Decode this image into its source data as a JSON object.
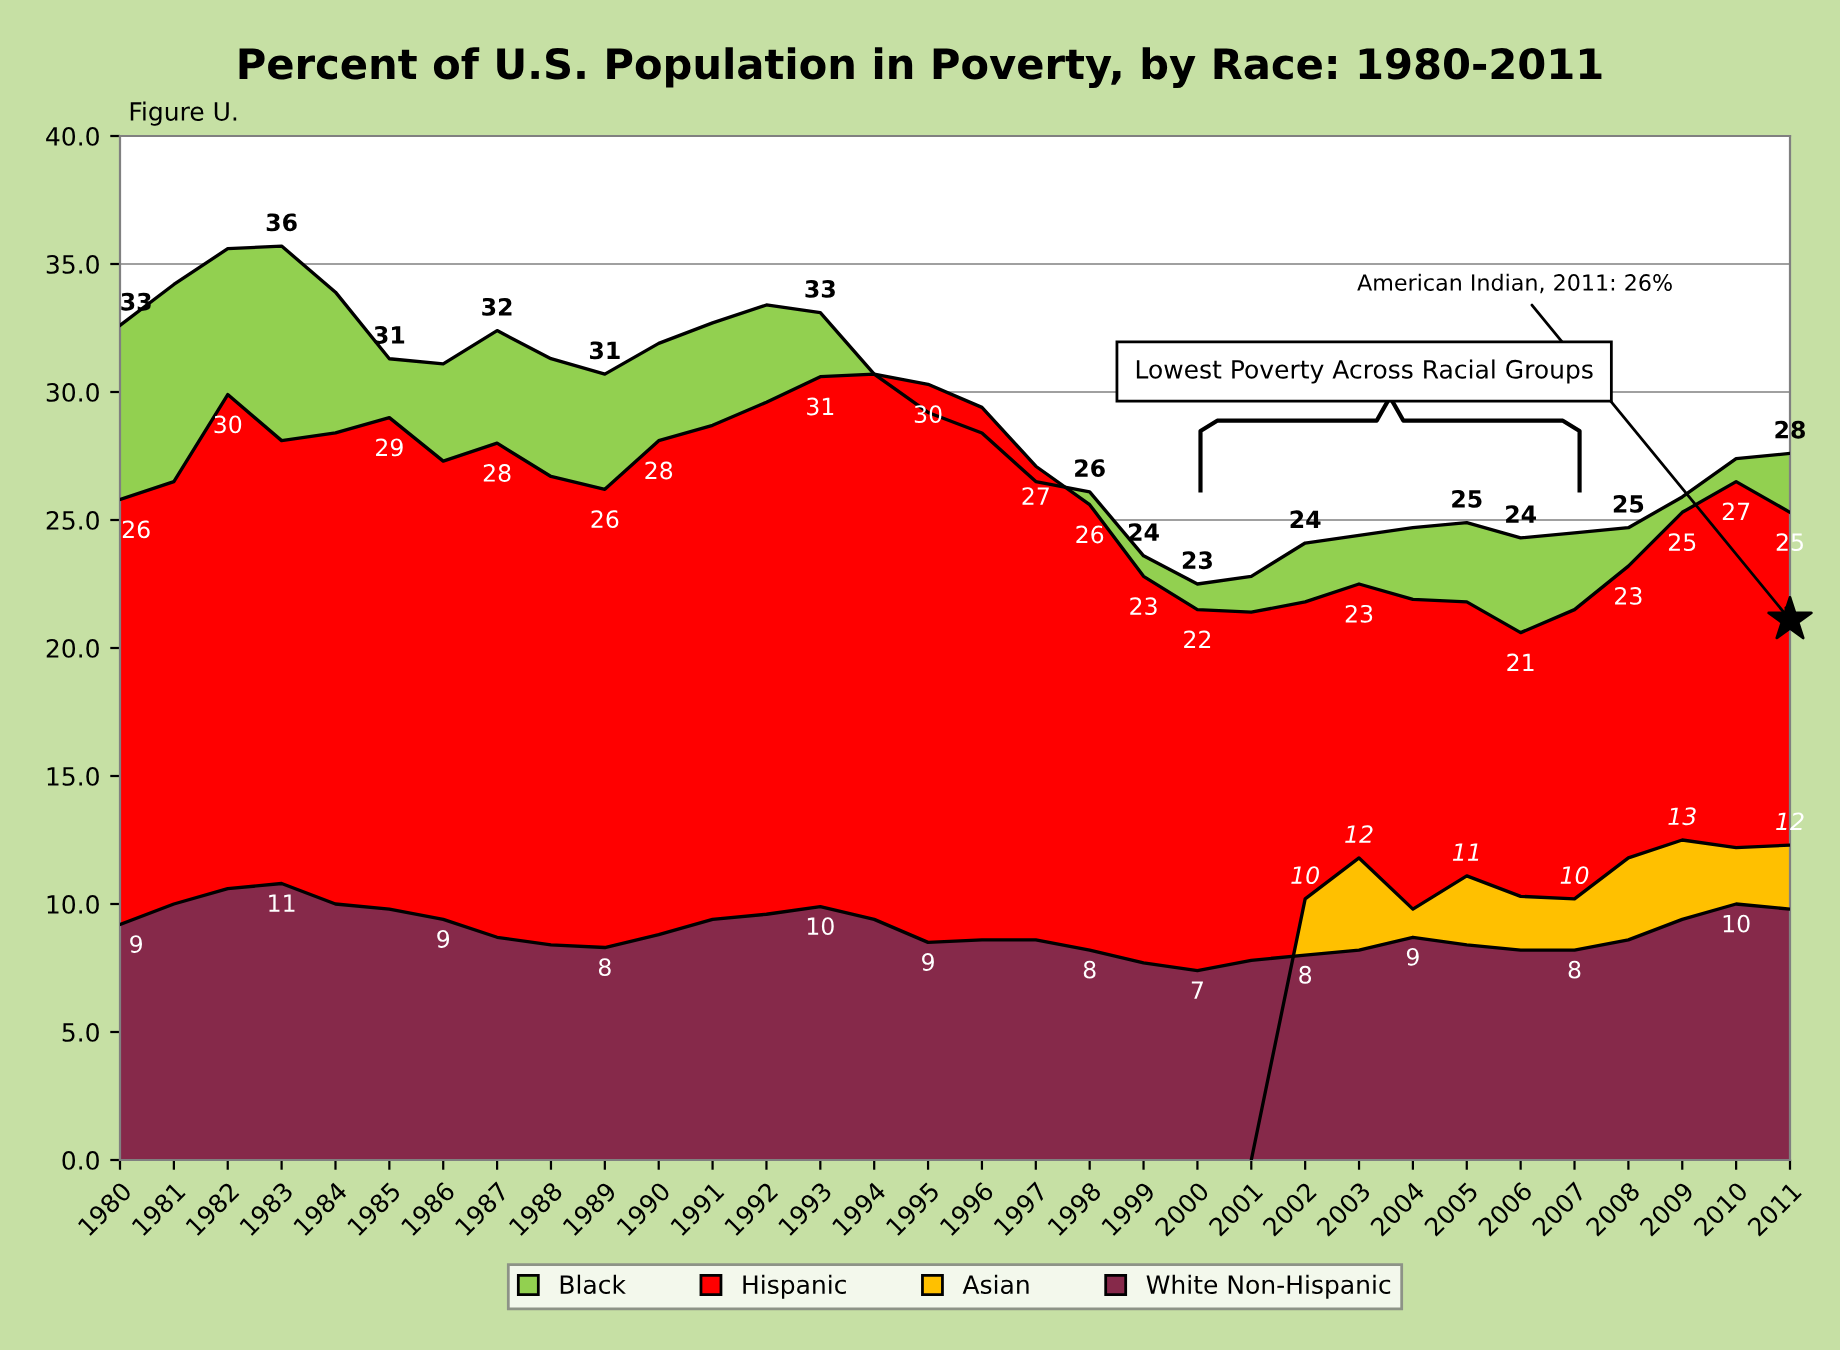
{
  "chart_data": {
    "type": "area",
    "title": "Percent of U.S. Population in Poverty, by Race: 1980-2011",
    "categories": [
      "1980",
      "1981",
      "1982",
      "1983",
      "1984",
      "1985",
      "1986",
      "1987",
      "1988",
      "1989",
      "1990",
      "1991",
      "1992",
      "1993",
      "1994",
      "1995",
      "1996",
      "1997",
      "1998",
      "1999",
      "2000",
      "2001",
      "2002",
      "2003",
      "2004",
      "2005",
      "2006",
      "2007",
      "2008",
      "2009",
      "2010",
      "2011"
    ],
    "series": [
      {
        "name": "Black",
        "color": "#92d050",
        "values": [
          32.6,
          34.2,
          35.6,
          35.7,
          33.9,
          31.3,
          31.1,
          32.4,
          31.3,
          30.7,
          31.9,
          32.7,
          33.4,
          33.1,
          30.7,
          29.2,
          28.4,
          26.5,
          26.1,
          23.6,
          22.5,
          22.8,
          24.1,
          24.4,
          24.7,
          24.9,
          24.3,
          24.5,
          24.7,
          25.9,
          27.4,
          27.6
        ],
        "value_labels": [
          "33",
          null,
          null,
          "36",
          null,
          "31",
          null,
          "32",
          null,
          "31",
          null,
          null,
          null,
          "33",
          null,
          null,
          null,
          null,
          "26",
          "24",
          "23",
          null,
          "24",
          null,
          null,
          "25",
          "24",
          null,
          "25",
          null,
          null,
          "28"
        ]
      },
      {
        "name": "Hispanic",
        "color": "#ff0000",
        "values": [
          25.8,
          26.5,
          29.9,
          28.1,
          28.4,
          29.0,
          27.3,
          28.0,
          26.7,
          26.2,
          28.1,
          28.7,
          29.6,
          30.6,
          30.7,
          30.3,
          29.4,
          27.1,
          25.6,
          22.8,
          21.5,
          21.4,
          21.8,
          22.5,
          21.9,
          21.8,
          20.6,
          21.5,
          23.2,
          25.3,
          26.5,
          25.3
        ],
        "value_labels": [
          "26",
          null,
          "30",
          null,
          null,
          "29",
          null,
          "28",
          null,
          "26",
          "28",
          null,
          null,
          "31",
          null,
          "30",
          null,
          "27",
          "26",
          "23",
          "22",
          null,
          null,
          "23",
          null,
          null,
          "21",
          null,
          "23",
          "25",
          "27",
          "25"
        ]
      },
      {
        "name": "Asian",
        "color": "#ffc000",
        "values": [
          null,
          null,
          null,
          null,
          null,
          null,
          null,
          null,
          null,
          null,
          null,
          null,
          null,
          null,
          null,
          null,
          null,
          null,
          null,
          null,
          null,
          0,
          10.2,
          11.8,
          9.8,
          11.1,
          10.3,
          10.2,
          11.8,
          12.5,
          12.2,
          12.3
        ],
        "value_labels": [
          null,
          null,
          null,
          null,
          null,
          null,
          null,
          null,
          null,
          null,
          null,
          null,
          null,
          null,
          null,
          null,
          null,
          null,
          null,
          null,
          null,
          null,
          "10",
          "12",
          null,
          "11",
          null,
          "10",
          null,
          "13",
          null,
          "12"
        ]
      },
      {
        "name": "White Non-Hispanic",
        "color": "#86294a",
        "values": [
          9.2,
          10.0,
          10.6,
          10.8,
          10.0,
          9.8,
          9.4,
          8.7,
          8.4,
          8.3,
          8.8,
          9.4,
          9.6,
          9.9,
          9.4,
          8.5,
          8.6,
          8.6,
          8.2,
          7.7,
          7.4,
          7.8,
          8.0,
          8.2,
          8.7,
          8.4,
          8.2,
          8.2,
          8.6,
          9.4,
          10.0,
          9.8
        ],
        "value_labels": [
          "9",
          null,
          null,
          "11",
          null,
          null,
          "9",
          null,
          null,
          "8",
          null,
          null,
          null,
          "10",
          null,
          "9",
          null,
          null,
          "8",
          null,
          "7",
          null,
          "8",
          null,
          "9",
          null,
          null,
          "8",
          null,
          null,
          "10",
          null
        ]
      },
      {
        "type": "scatter",
        "color": "#000000",
        "marker": "star",
        "values": [
          null,
          null,
          null,
          null,
          null,
          null,
          null,
          null,
          null,
          null,
          null,
          null,
          null,
          null,
          null,
          null,
          null,
          null,
          null,
          null,
          null,
          null,
          null,
          null,
          null,
          null,
          null,
          null,
          null,
          null,
          null,
          21.1
        ]
      }
    ],
    "ylim": [
      0,
      40
    ],
    "yticks": [
      {
        "value": 0,
        "label": "0.0"
      },
      {
        "value": 5,
        "label": "5.0"
      },
      {
        "value": 10,
        "label": "10.0"
      },
      {
        "value": 15,
        "label": "15.0"
      },
      {
        "value": 20,
        "label": "20.0"
      },
      {
        "value": 25,
        "label": "25.0"
      },
      {
        "value": 30,
        "label": "30.0"
      },
      {
        "value": 35,
        "label": "35.0"
      },
      {
        "value": 40,
        "label": "40.0"
      }
    ],
    "grid": "y",
    "legend": "bottom",
    "annotations": [
      "Figure U.",
      "Lowest Poverty Across Racial Groups",
      {
        "text": "American Indian, 2011: 26%",
        "x": "2011",
        "y": 21.1
      }
    ]
  }
}
